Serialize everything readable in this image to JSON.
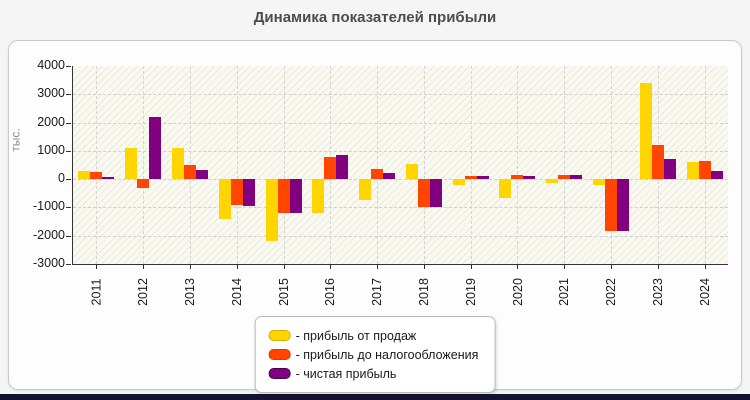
{
  "page": {
    "title": "Динамика показателей прибыли"
  },
  "colors": {
    "series_fill": [
      "#FFD500",
      "#FF4500",
      "#800080"
    ],
    "series_border": [
      "#D9A900",
      "#D93A00",
      "#4B004B"
    ],
    "page_bg": "#f5f5f5",
    "panel_bg": "#fdfdfd",
    "panel_border": "#c9c9c9",
    "plot_bg": "#faf9ef",
    "grid": "#cfcfcf",
    "axis": "#333333",
    "title_color": "#4d4d4d",
    "bottom_bar": "#13132f"
  },
  "legend": {
    "items": [
      {
        "label": "- прибыль от продаж",
        "color": "#FFD500",
        "border": "#D9A900"
      },
      {
        "label": "- прибыль до налогообложения",
        "color": "#FF4500",
        "border": "#D93A00"
      },
      {
        "label": "- чистая прибыль",
        "color": "#800080",
        "border": "#4B004B"
      }
    ]
  },
  "chart_data": {
    "type": "bar",
    "title": "Динамика показателей прибыли",
    "xlabel": "",
    "ylabel": "тыс.",
    "ylim": [
      -3000,
      4000
    ],
    "yticks": [
      4000,
      3000,
      2000,
      1000,
      0,
      -1000,
      -2000,
      -3000
    ],
    "grid": true,
    "legend_position": "bottom-center",
    "categories": [
      "2011",
      "2012",
      "2013",
      "2014",
      "2015",
      "2016",
      "2017",
      "2018",
      "2019",
      "2020",
      "2021",
      "2022",
      "2023",
      "2024"
    ],
    "series": [
      {
        "name": "прибыль от продаж",
        "values": [
          300,
          1100,
          1100,
          -1400,
          -2200,
          -1200,
          -750,
          550,
          -200,
          -650,
          -150,
          -200,
          3400,
          600
        ]
      },
      {
        "name": "прибыль до налогообложения",
        "values": [
          250,
          -300,
          500,
          -900,
          -1200,
          800,
          350,
          -1000,
          100,
          150,
          150,
          -1850,
          1200,
          650
        ]
      },
      {
        "name": "чистая прибыль",
        "values": [
          80,
          2200,
          320,
          -950,
          -1200,
          850,
          200,
          -1000,
          100,
          120,
          150,
          -1850,
          700,
          300
        ]
      }
    ]
  }
}
